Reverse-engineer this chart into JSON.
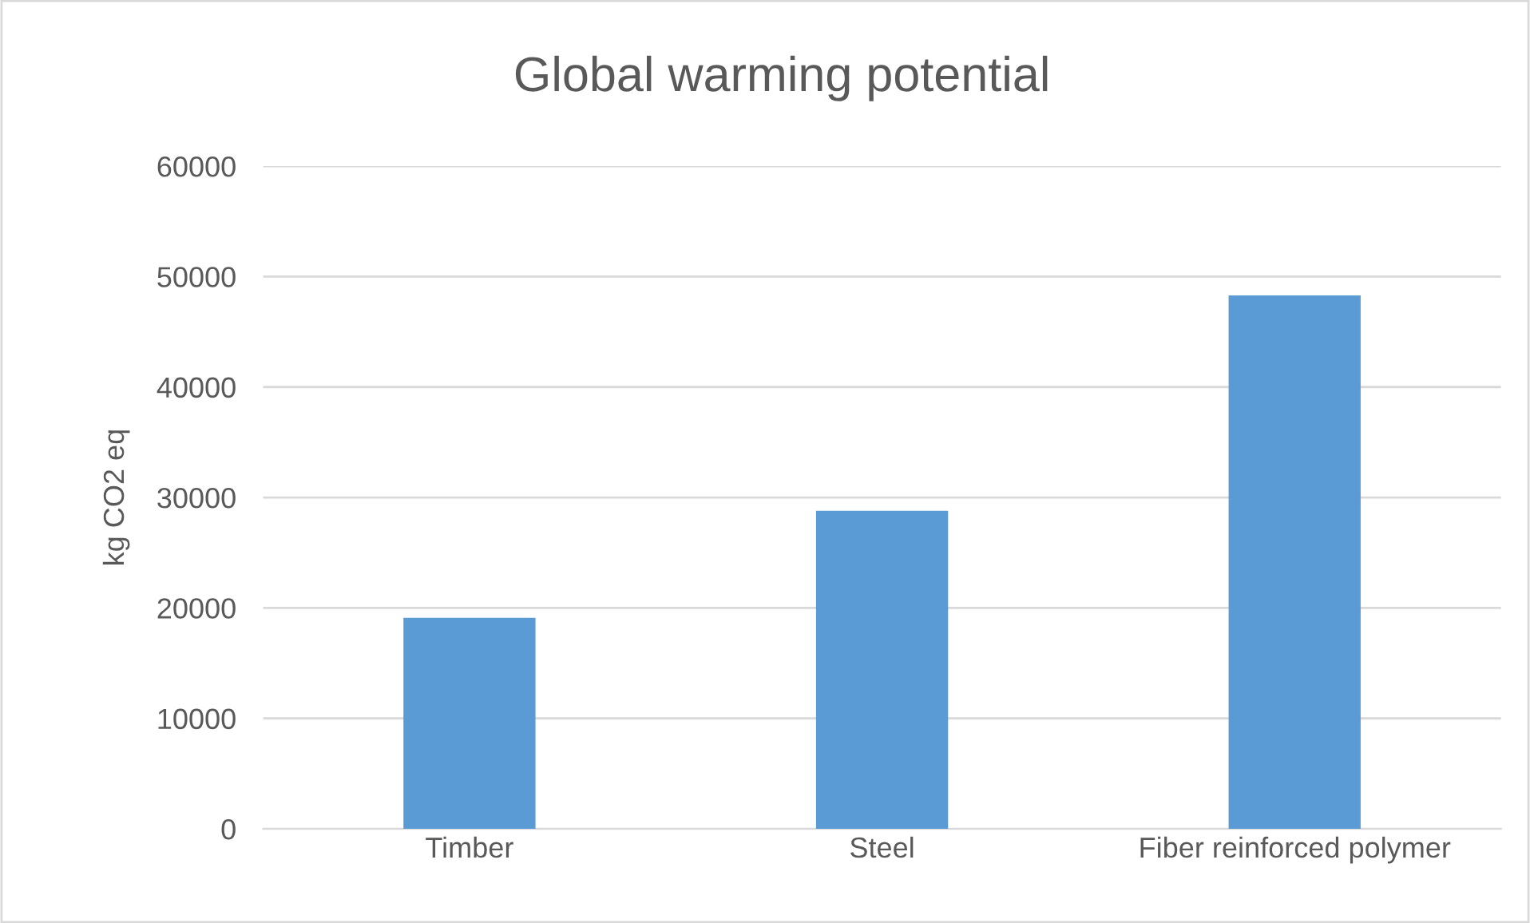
{
  "chart_data": {
    "type": "bar",
    "title": "Global warming potential",
    "ylabel": "kg CO2 eq",
    "categories": [
      "Timber",
      "Steel",
      "Fiber reinforced polymer"
    ],
    "values": [
      19100,
      28800,
      48300
    ],
    "color": "#5b9bd5",
    "ylim": [
      0,
      60000
    ],
    "yticks": [
      0,
      10000,
      20000,
      30000,
      40000,
      50000,
      60000
    ],
    "grid": "y"
  }
}
